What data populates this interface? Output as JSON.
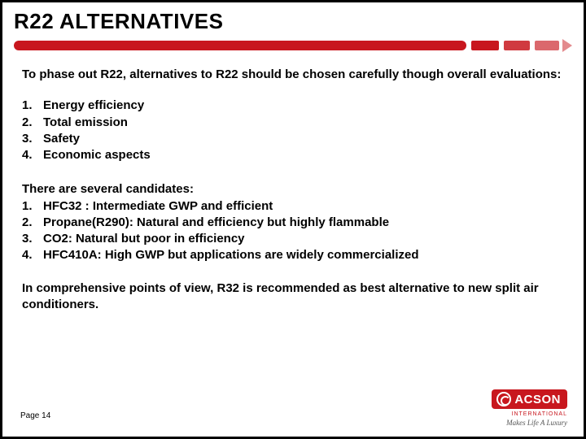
{
  "title": "R22 ALTERNATIVES",
  "intro": "To phase out R22, alternatives to R22 should be chosen carefully though overall evaluations:",
  "criteria": [
    "Energy efficiency",
    "Total emission",
    "Safety",
    "Economic aspects"
  ],
  "candidates_lead": "There are several candidates:",
  "candidates": [
    "HFC32 : Intermediate GWP and efficient",
    "Propane(R290): Natural and efficiency but highly flammable",
    "CO2: Natural but poor in efficiency",
    "HFC410A: High GWP but applications are widely commercialized"
  ],
  "conclusion": "In comprehensive points of view, R32 is recommended as best alternative to new split air conditioners.",
  "page_label": "Page 14",
  "logo": {
    "name": "ACSON",
    "sub": "INTERNATIONAL",
    "tagline": "Makes Life A Luxury"
  },
  "colors": {
    "accent": "#c8171e",
    "text": "#000000",
    "background": "#ffffff"
  }
}
